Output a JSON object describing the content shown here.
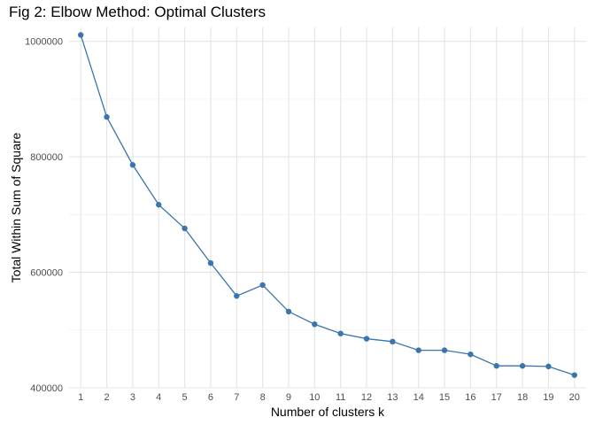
{
  "chart_data": {
    "type": "line",
    "title": "Fig 2: Elbow Method: Optimal Clusters",
    "xlabel": "Number of clusters k",
    "ylabel": "Total Within Sum of Square",
    "x": [
      1,
      2,
      3,
      4,
      5,
      6,
      7,
      8,
      9,
      10,
      11,
      12,
      13,
      14,
      15,
      16,
      17,
      18,
      19,
      20
    ],
    "y": [
      1011000,
      869000,
      786000,
      717000,
      676000,
      616000,
      559000,
      578000,
      532000,
      510000,
      494000,
      485000,
      480000,
      465000,
      465000,
      458000,
      438000,
      438000,
      437000,
      422000
    ],
    "xticks": [
      "1",
      "2",
      "3",
      "4",
      "5",
      "6",
      "7",
      "8",
      "9",
      "10",
      "11",
      "12",
      "13",
      "14",
      "15",
      "16",
      "17",
      "18",
      "19",
      "20"
    ],
    "yticks": [
      400000,
      600000,
      800000,
      1000000
    ],
    "ytick_labels": [
      "400000",
      "600000",
      "800000",
      "1000000"
    ],
    "ylim": [
      400000,
      1024000
    ],
    "xlim": [
      0.55,
      20.45
    ],
    "grid": true,
    "line_color": "#3a75ad",
    "point_color": "#3a75ad"
  }
}
